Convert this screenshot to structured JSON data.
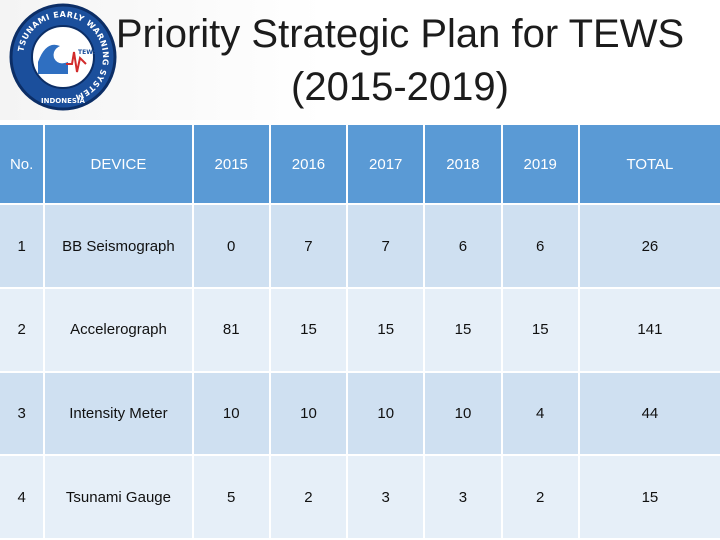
{
  "title_line1": "Priority Strategic Plan for TEWS",
  "title_line2": "(2015-2019)",
  "logo": {
    "ring_text": "TSUNAMI EARLY WARNING SYSTEM",
    "bottom_text": "INDONESIA",
    "center_text": "TEWS",
    "colors": {
      "ring": "#1b4f9c",
      "ring_border": "#0c2e66",
      "inner": "#ffffff",
      "wave": "#2f6fc1",
      "accent": "#d22b2b"
    }
  },
  "table": {
    "headers": [
      "No.",
      "DEVICE",
      "2015",
      "2016",
      "2017",
      "2018",
      "2019",
      "TOTAL"
    ],
    "rows": [
      [
        "1",
        "BB Seismograph",
        "0",
        "7",
        "7",
        "6",
        "6",
        "26"
      ],
      [
        "2",
        "Accelerograph",
        "81",
        "15",
        "15",
        "15",
        "15",
        "141"
      ],
      [
        "3",
        "Intensity Meter",
        "10",
        "10",
        "10",
        "10",
        "4",
        "44"
      ],
      [
        "4",
        "Tsunami Gauge",
        "5",
        "2",
        "3",
        "3",
        "2",
        "15"
      ]
    ],
    "colors": {
      "header_bg": "#5a9ad5",
      "row_odd_bg": "#cfe0f1",
      "row_even_bg": "#e6eff8",
      "border": "#ffffff"
    }
  }
}
